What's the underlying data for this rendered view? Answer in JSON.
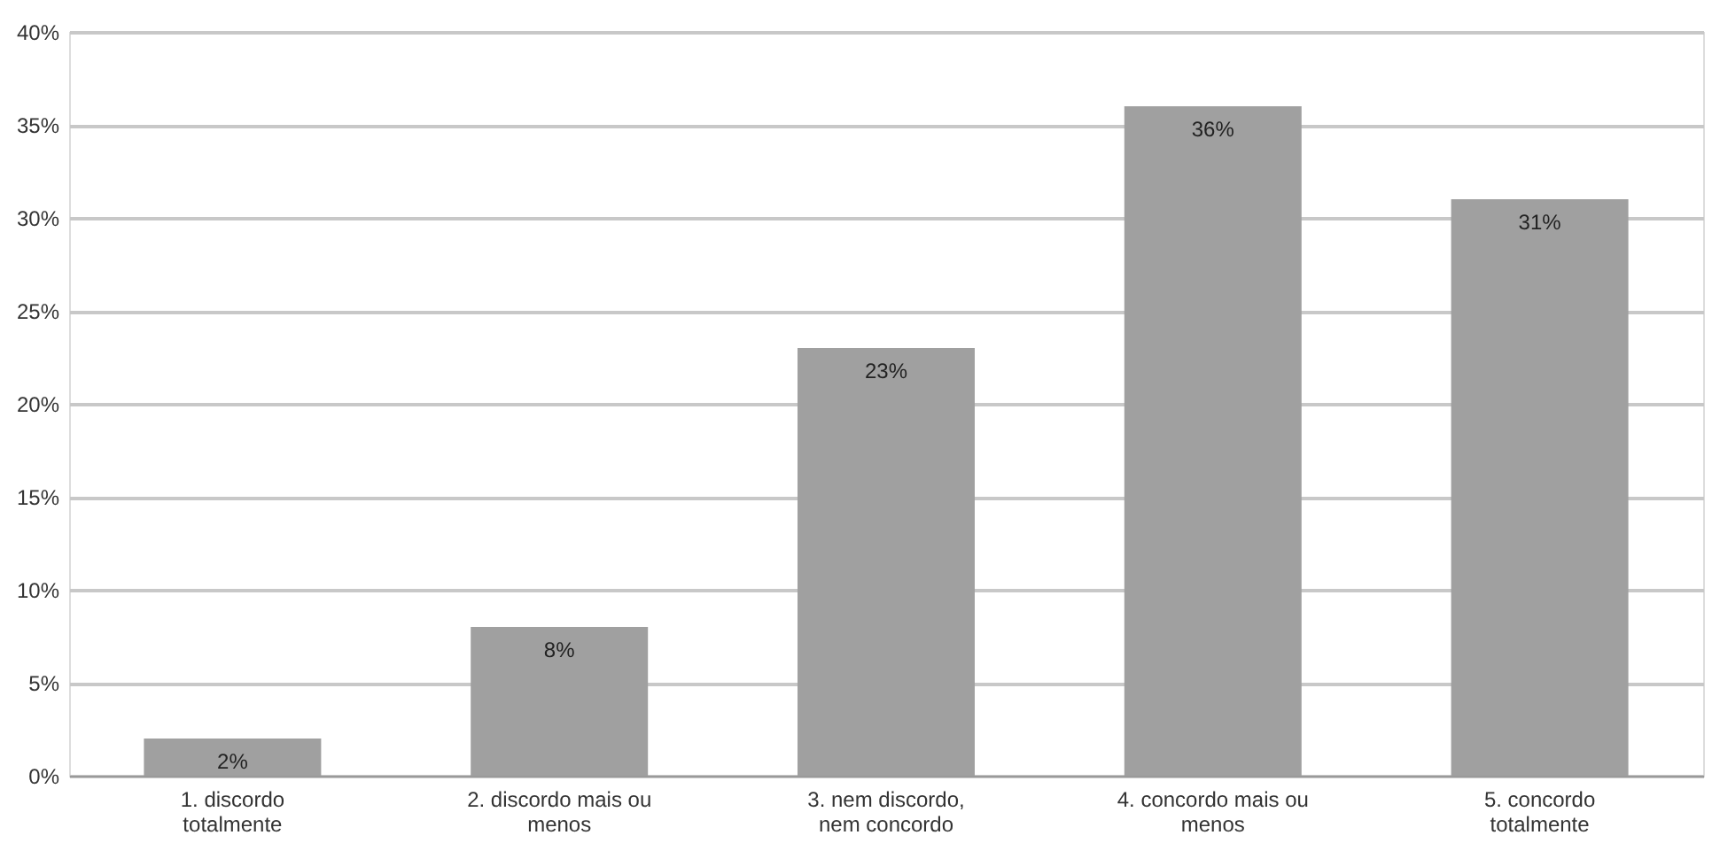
{
  "chart_data": {
    "type": "bar",
    "categories": [
      "1. discordo totalmente",
      "2. discordo mais ou menos",
      "3. nem discordo, nem concordo",
      "4. concordo mais ou menos",
      "5. concordo totalmente"
    ],
    "values": [
      2,
      8,
      23,
      36,
      31
    ],
    "value_labels": [
      "2%",
      "8%",
      "23%",
      "36%",
      "31%"
    ],
    "color": "#a0a0a0",
    "ylim": [
      0,
      40
    ],
    "yticks": [
      {
        "value": 0,
        "label": "0%"
      },
      {
        "value": 5,
        "label": "5%"
      },
      {
        "value": 10,
        "label": "10%"
      },
      {
        "value": 15,
        "label": "15%"
      },
      {
        "value": 20,
        "label": "20%"
      },
      {
        "value": 25,
        "label": "25%"
      },
      {
        "value": 30,
        "label": "30%"
      },
      {
        "value": 35,
        "label": "35%"
      },
      {
        "value": 40,
        "label": "40%"
      }
    ],
    "grid": "y"
  }
}
